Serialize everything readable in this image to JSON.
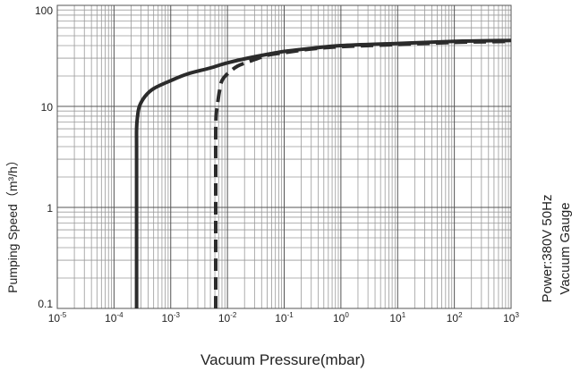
{
  "chart_data": {
    "type": "line",
    "xscale": "log",
    "yscale": "log",
    "xlim": [
      1e-05,
      1000
    ],
    "ylim": [
      0.1,
      100
    ],
    "grid": true,
    "xlabel": "Vacuum Pressure(mbar)",
    "ylabel": "Pumping Speed（m³/h）",
    "x_ticks": [
      {
        "value": 1e-05,
        "mant": "10",
        "exp": "-5"
      },
      {
        "value": 0.0001,
        "mant": "10",
        "exp": "-4"
      },
      {
        "value": 0.001,
        "mant": "10",
        "exp": "-3"
      },
      {
        "value": 0.01,
        "mant": "10",
        "exp": "-2"
      },
      {
        "value": 0.1,
        "mant": "10",
        "exp": "-1"
      },
      {
        "value": 1,
        "mant": "10",
        "exp": "0"
      },
      {
        "value": 10,
        "mant": "10",
        "exp": "1"
      },
      {
        "value": 100,
        "mant": "10",
        "exp": "2"
      },
      {
        "value": 1000,
        "mant": "10",
        "exp": "3"
      }
    ],
    "y_ticks": [
      {
        "value": 0.1,
        "label": "0.1"
      },
      {
        "value": 1,
        "label": "1"
      },
      {
        "value": 10,
        "label": "10"
      },
      {
        "value": 100,
        "label": "100"
      }
    ],
    "annotations": [
      "Power:380V 50Hz",
      "Vacuum Gauge"
    ],
    "series": [
      {
        "style": "solid",
        "points": [
          [
            0.00025,
            0.1
          ],
          [
            0.00025,
            3
          ],
          [
            0.00025,
            6
          ],
          [
            0.00026,
            8
          ],
          [
            0.00028,
            10
          ],
          [
            0.00035,
            12.5
          ],
          [
            0.0005,
            15
          ],
          [
            0.001,
            18
          ],
          [
            0.002,
            21
          ],
          [
            0.005,
            24
          ],
          [
            0.01,
            27
          ],
          [
            0.03,
            31
          ],
          [
            0.1,
            35
          ],
          [
            0.3,
            37.5
          ],
          [
            1,
            40
          ],
          [
            10,
            42
          ],
          [
            100,
            44
          ],
          [
            1000,
            45
          ]
        ]
      },
      {
        "style": "dashed",
        "points": [
          [
            0.0062,
            0.1
          ],
          [
            0.0062,
            2
          ],
          [
            0.0062,
            5
          ],
          [
            0.0063,
            8
          ],
          [
            0.0066,
            10
          ],
          [
            0.0072,
            14
          ],
          [
            0.008,
            18
          ],
          [
            0.01,
            21
          ],
          [
            0.015,
            25
          ],
          [
            0.025,
            28
          ],
          [
            0.05,
            32
          ],
          [
            0.1,
            34
          ],
          [
            0.3,
            37
          ],
          [
            1,
            39
          ],
          [
            10,
            41
          ],
          [
            100,
            43
          ],
          [
            1000,
            44
          ]
        ]
      }
    ]
  }
}
